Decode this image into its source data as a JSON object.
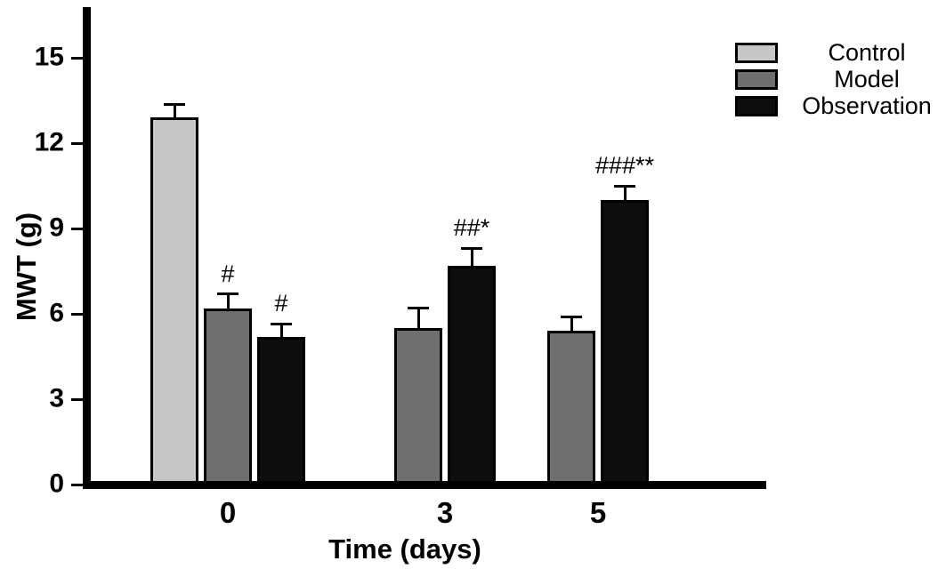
{
  "chart_data": {
    "type": "bar",
    "title": "",
    "xlabel": "Time (days)",
    "ylabel": "MWT (g)",
    "categories": [
      "0",
      "3",
      "5"
    ],
    "ylim": [
      0,
      15
    ],
    "yticks": [
      0,
      3,
      6,
      9,
      12,
      15
    ],
    "grid": false,
    "legend_position": "top-right",
    "series": [
      {
        "name": "Control",
        "color": "#c7c7c7",
        "values": [
          12.9,
          null,
          null
        ],
        "errors": [
          0.45,
          null,
          null
        ],
        "annotations": [
          "",
          "",
          ""
        ]
      },
      {
        "name": "Model",
        "color": "#6f6f6f",
        "values": [
          6.2,
          5.5,
          5.4
        ],
        "errors": [
          0.5,
          0.7,
          0.5
        ],
        "annotations": [
          "#",
          "",
          ""
        ]
      },
      {
        "name": "Observation",
        "color": "#0d0d0d",
        "values": [
          5.2,
          7.7,
          10.0
        ],
        "errors": [
          0.45,
          0.6,
          0.5
        ],
        "annotations": [
          "#",
          "##*",
          "###**"
        ]
      }
    ]
  }
}
